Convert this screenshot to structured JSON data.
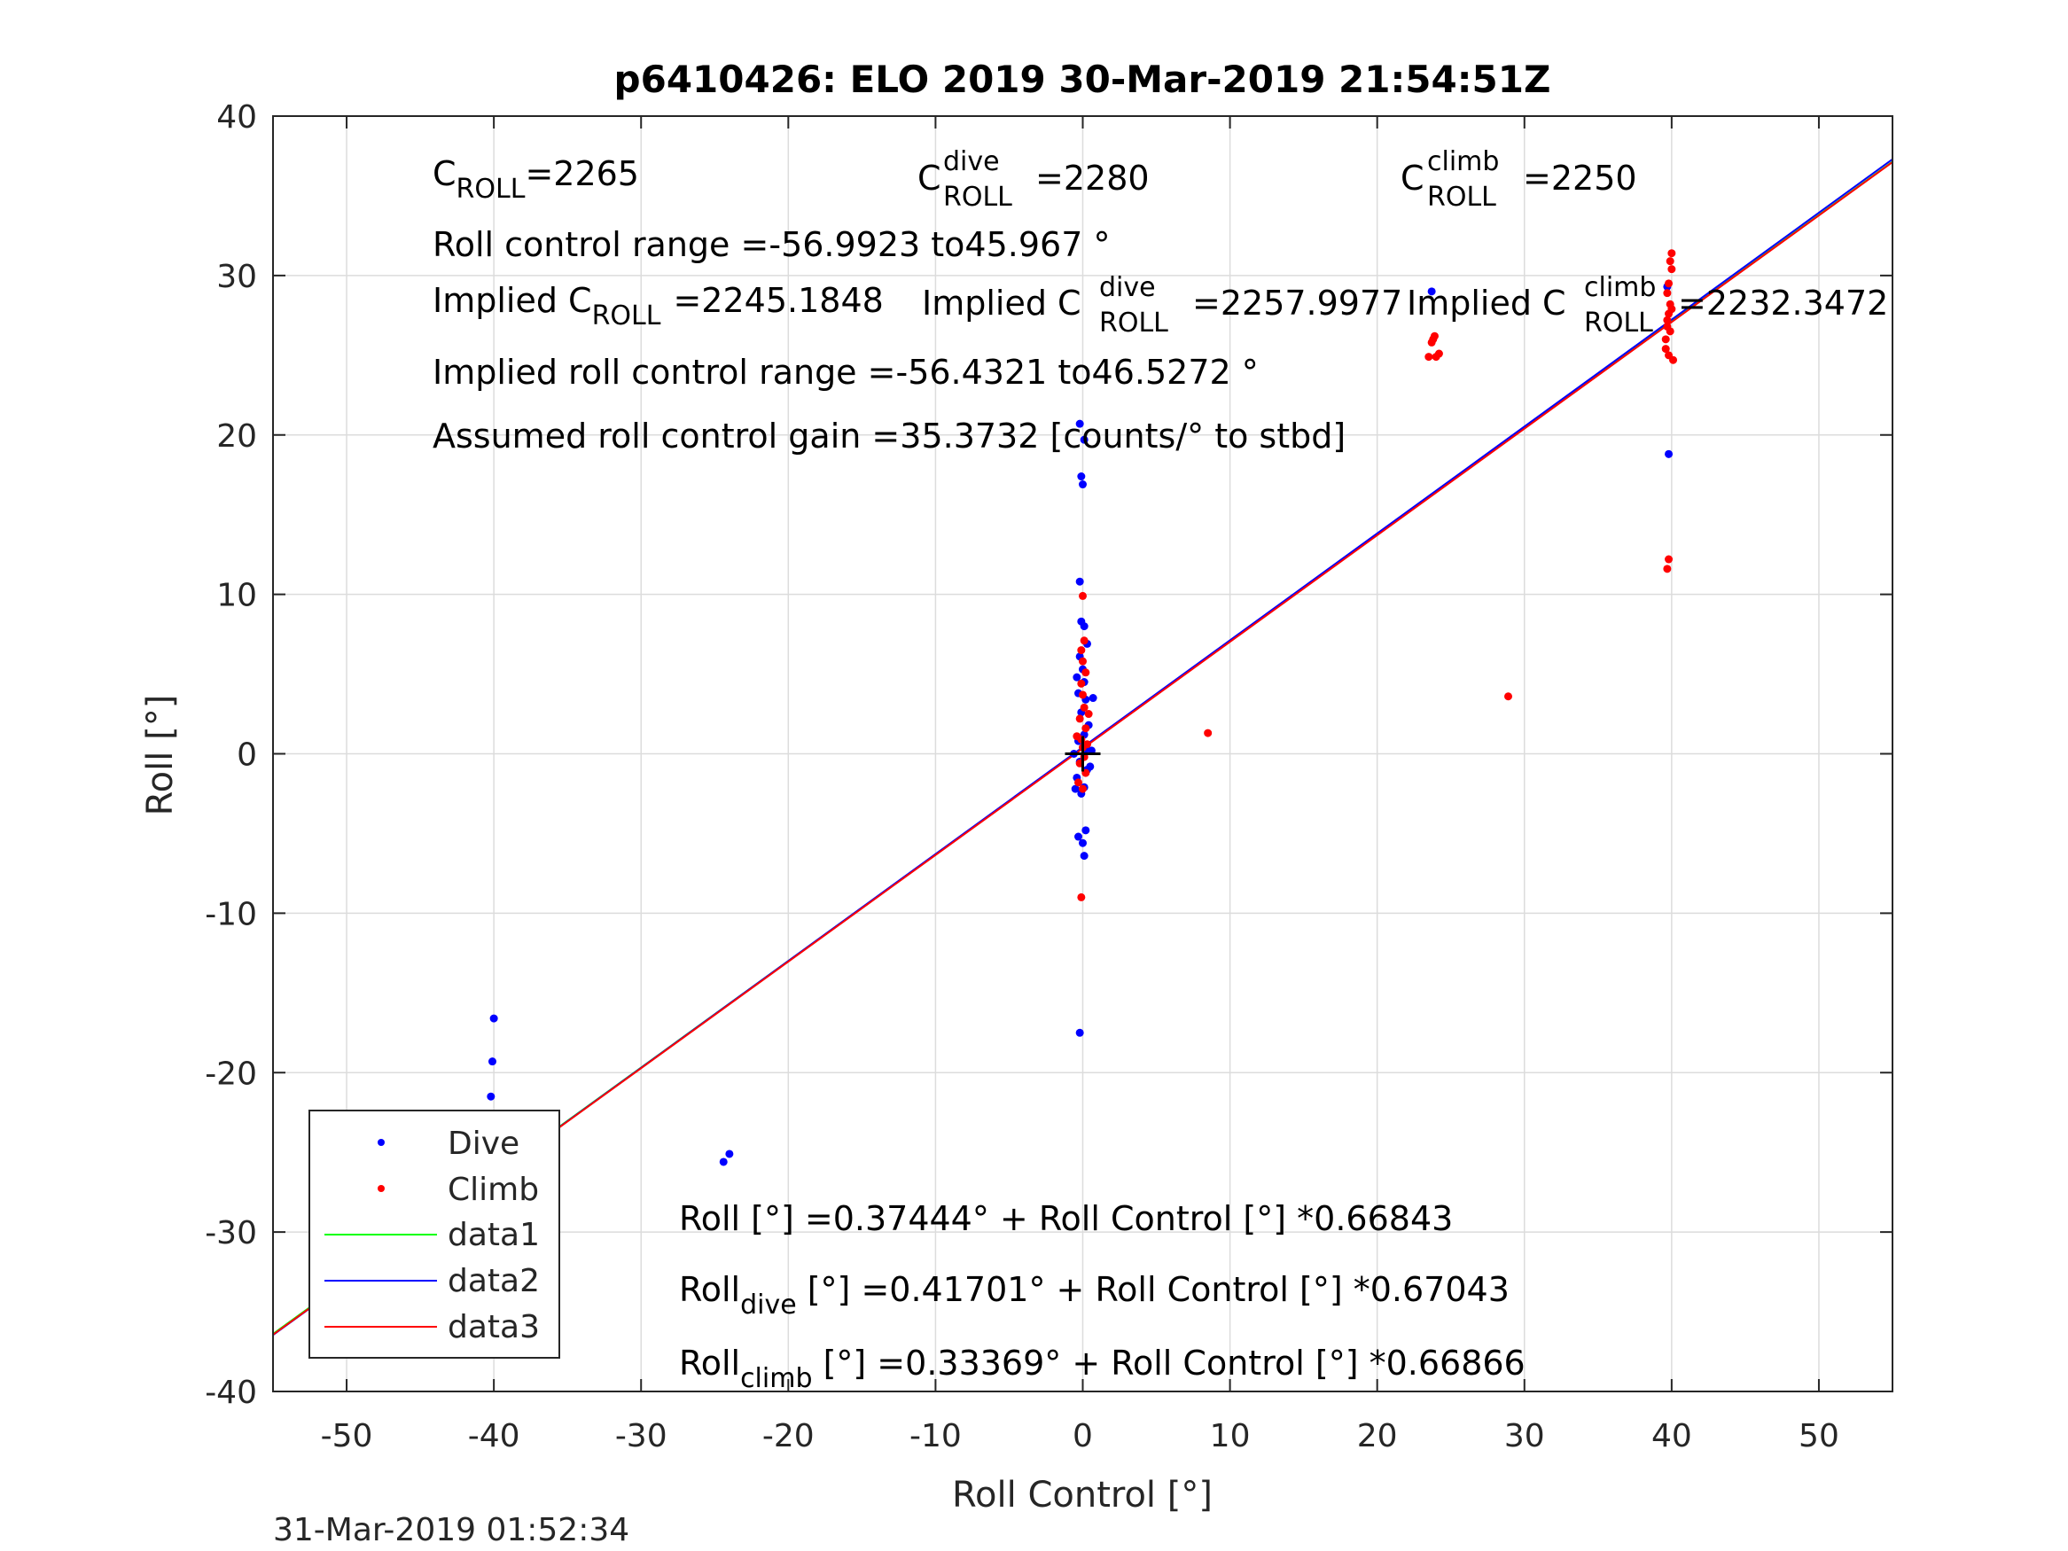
{
  "chart_data": {
    "type": "scatter",
    "title": "p6410426: ELO 2019 30-Mar-2019 21:54:51Z",
    "xlabel": "Roll Control [°]",
    "ylabel": "Roll [°]",
    "xlim": [
      -55,
      55
    ],
    "ylim": [
      -40,
      40
    ],
    "xticks": [
      -50,
      -40,
      -30,
      -20,
      -10,
      0,
      10,
      20,
      30,
      40,
      50
    ],
    "yticks": [
      -40,
      -30,
      -20,
      -10,
      0,
      10,
      20,
      30,
      40
    ],
    "grid": true,
    "legend_position": "bottom-left",
    "colors": {
      "dive": "#0000ff",
      "climb": "#ff0000",
      "data1": "#00ff00",
      "data2": "#0000ff",
      "data3": "#ff0000",
      "axis": "#262626",
      "grid": "#dcdcdc"
    },
    "legend": [
      "Dive",
      "Climb",
      "data1",
      "data2",
      "data3"
    ],
    "series": [
      {
        "name": "Dive",
        "marker": "dot",
        "color": "#0000ff",
        "points": [
          [
            -40.0,
            -16.6
          ],
          [
            -40.1,
            -19.3
          ],
          [
            -40.2,
            -21.5
          ],
          [
            -40.0,
            -24.0
          ],
          [
            -39.9,
            -24.5
          ],
          [
            -40.1,
            -24.8
          ],
          [
            -40.0,
            -25.8
          ],
          [
            -39.8,
            -26.3
          ],
          [
            -40.2,
            -26.6
          ],
          [
            -40.0,
            -27.0
          ],
          [
            -39.7,
            -27.2
          ],
          [
            -40.1,
            -27.5
          ],
          [
            -39.9,
            -27.8
          ],
          [
            -40.3,
            -27.0
          ],
          [
            -24.0,
            -25.1
          ],
          [
            -24.4,
            -25.6
          ],
          [
            -0.2,
            -17.5
          ],
          [
            0.1,
            -6.4
          ],
          [
            -0.3,
            -5.2
          ],
          [
            0.0,
            -5.6
          ],
          [
            0.2,
            -4.8
          ],
          [
            -0.1,
            -2.5
          ],
          [
            0.1,
            -2.1
          ],
          [
            -0.4,
            -1.5
          ],
          [
            0.3,
            -1.0
          ],
          [
            -0.2,
            -0.5
          ],
          [
            0.2,
            0.3
          ],
          [
            -0.3,
            0.8
          ],
          [
            0.1,
            1.2
          ],
          [
            0.4,
            1.8
          ],
          [
            -0.1,
            2.6
          ],
          [
            0.2,
            3.4
          ],
          [
            -0.3,
            3.8
          ],
          [
            0.1,
            4.5
          ],
          [
            0.0,
            5.3
          ],
          [
            -0.2,
            6.1
          ],
          [
            0.3,
            6.9
          ],
          [
            -0.1,
            8.3
          ],
          [
            0.1,
            8.0
          ],
          [
            -0.2,
            10.8
          ],
          [
            0.0,
            16.9
          ],
          [
            -0.1,
            17.4
          ],
          [
            0.1,
            19.7
          ],
          [
            -0.2,
            20.7
          ],
          [
            -0.6,
            0.0
          ],
          [
            0.6,
            0.2
          ],
          [
            0.5,
            -0.8
          ],
          [
            -0.5,
            -2.2
          ],
          [
            0.7,
            3.5
          ],
          [
            -0.4,
            4.8
          ],
          [
            23.7,
            29.0
          ],
          [
            39.7,
            29.3
          ],
          [
            39.8,
            18.8
          ]
        ]
      },
      {
        "name": "Climb",
        "marker": "dot",
        "color": "#ff0000",
        "points": [
          [
            -40.0,
            -26.6
          ],
          [
            -39.8,
            -27.5
          ],
          [
            -40.1,
            -28.0
          ],
          [
            -40.0,
            -28.7
          ],
          [
            -39.9,
            -26.0
          ],
          [
            -0.1,
            -9.0
          ],
          [
            0.0,
            -2.2
          ],
          [
            -0.3,
            -1.8
          ],
          [
            0.2,
            -1.2
          ],
          [
            -0.2,
            -0.6
          ],
          [
            0.1,
            -0.2
          ],
          [
            0.0,
            0.4
          ],
          [
            -0.1,
            0.9
          ],
          [
            0.2,
            1.6
          ],
          [
            -0.2,
            2.2
          ],
          [
            0.1,
            2.9
          ],
          [
            0.0,
            3.7
          ],
          [
            -0.1,
            4.4
          ],
          [
            0.2,
            5.1
          ],
          [
            0.0,
            5.8
          ],
          [
            -0.1,
            6.5
          ],
          [
            0.1,
            7.1
          ],
          [
            0.0,
            9.9
          ],
          [
            0.3,
            0.6
          ],
          [
            -0.4,
            1.1
          ],
          [
            0.4,
            2.5
          ],
          [
            8.5,
            1.3
          ],
          [
            28.9,
            3.6
          ],
          [
            23.5,
            24.9
          ],
          [
            23.7,
            25.8
          ],
          [
            23.9,
            26.2
          ],
          [
            24.2,
            25.1
          ],
          [
            24.0,
            24.9
          ],
          [
            23.8,
            26.0
          ],
          [
            39.6,
            26.0
          ],
          [
            39.7,
            26.8
          ],
          [
            39.8,
            27.6
          ],
          [
            39.9,
            28.2
          ],
          [
            39.7,
            28.9
          ],
          [
            39.8,
            29.5
          ],
          [
            40.0,
            30.4
          ],
          [
            39.9,
            30.9
          ],
          [
            40.0,
            31.4
          ],
          [
            39.6,
            25.4
          ],
          [
            39.8,
            25.0
          ],
          [
            40.1,
            24.7
          ],
          [
            39.7,
            27.2
          ],
          [
            40.0,
            27.9
          ],
          [
            39.9,
            26.5
          ],
          [
            39.8,
            12.2
          ],
          [
            39.7,
            11.6
          ]
        ]
      },
      {
        "name": "data1",
        "type": "line",
        "color": "#00ff00",
        "points": [
          [
            -55,
            -36.39
          ],
          [
            55,
            37.14
          ]
        ]
      },
      {
        "name": "data2",
        "type": "line",
        "color": "#0000ff",
        "points": [
          [
            -55,
            -36.46
          ],
          [
            55,
            37.29
          ]
        ]
      },
      {
        "name": "data3",
        "type": "line",
        "color": "#ff0000",
        "points": [
          [
            -55,
            -36.44
          ],
          [
            55,
            37.11
          ]
        ]
      }
    ],
    "origin_marker": [
      0,
      0
    ],
    "annotations": {
      "c_roll": {
        "base": "C",
        "sub": "ROLL",
        "rest": "=2265"
      },
      "c_roll_dive": {
        "base": "C",
        "sup": "dive",
        "sub": "ROLL",
        "rest": "=2280"
      },
      "c_roll_climb": {
        "base": "C",
        "sup": "climb",
        "sub": "ROLL",
        "rest": "=2250"
      },
      "roll_control_range": "Roll control range =-56.9923 to45.967 °",
      "implied_c_roll": {
        "base": "Implied C",
        "sub": "ROLL",
        "rest": "=2245.1848"
      },
      "implied_c_roll_dive": {
        "base": "Implied C",
        "sup": "dive",
        "sub": "ROLL",
        "rest": "=2257.9977"
      },
      "implied_c_roll_climb": {
        "base": "Implied C",
        "sup": "climb",
        "sub": "ROLL",
        "rest": "=2232.3472"
      },
      "implied_range": "Implied roll control range =-56.4321 to46.5272 °",
      "assumed_gain": "Assumed roll control gain =35.3732 [counts/° to stbd]",
      "fit_all": "Roll [°] =0.37444° + Roll Control [°] *0.66843",
      "fit_dive": {
        "base": "Roll",
        "sub": "dive",
        "rest": " [°] =0.41701° + Roll Control [°] *0.67043"
      },
      "fit_climb": {
        "base": "Roll",
        "sub": "climb",
        "rest": " [°] =0.33369° + Roll Control [°] *0.66866"
      }
    },
    "footer_timestamp": "31-Mar-2019 01:52:34"
  }
}
